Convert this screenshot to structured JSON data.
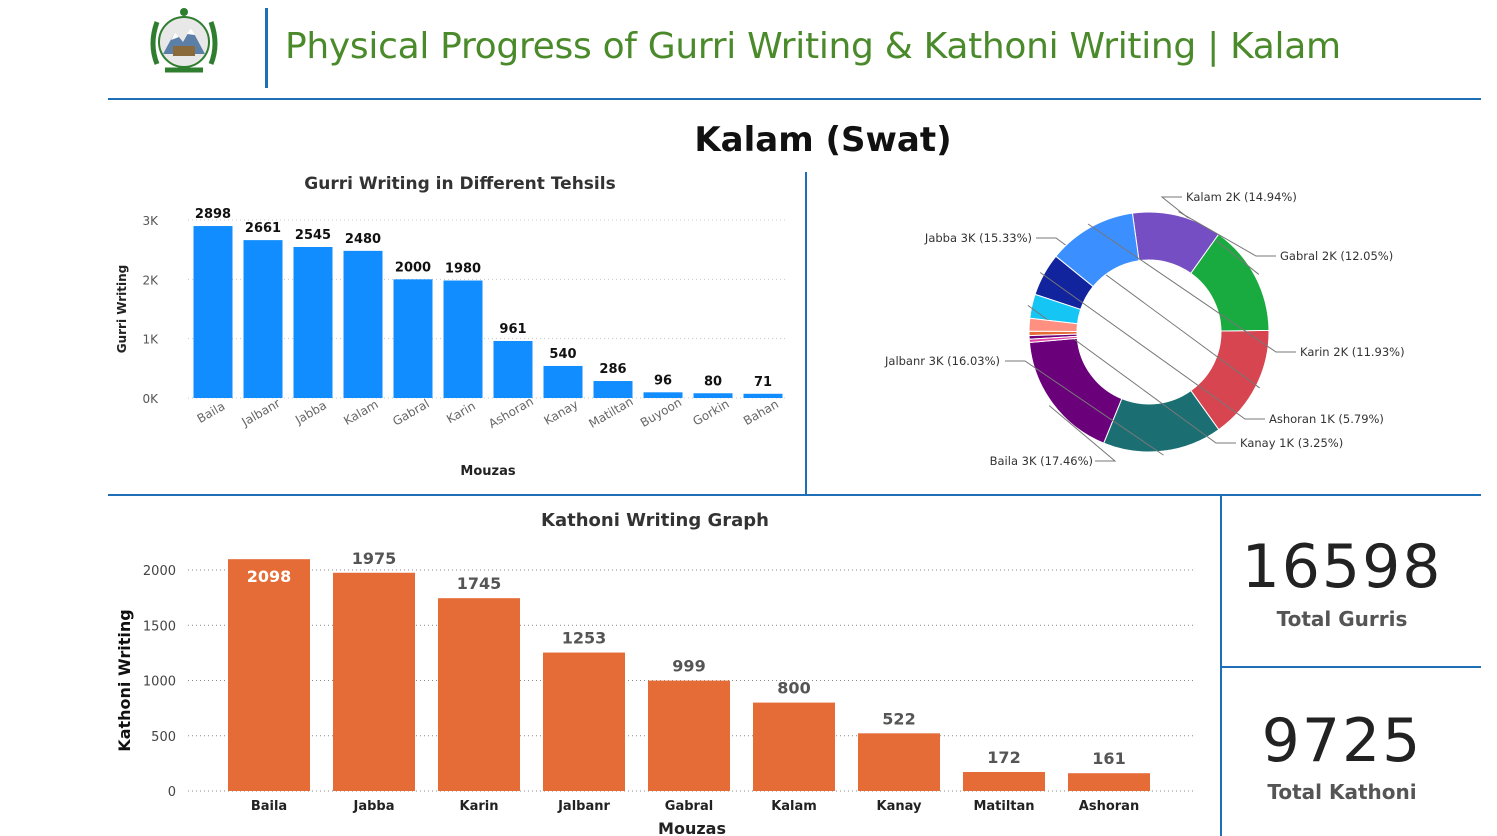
{
  "header": {
    "title": "Physical Progress of Gurri Writing & Kathoni Writing | Kalam"
  },
  "region_title": "Kalam (Swat)",
  "colors": {
    "header_green": "#4a8a2a",
    "divider_blue": "#1f6fb8",
    "gurri_bar": "#118dff",
    "kathoni_bar": "#e66c37"
  },
  "kpis": {
    "total_gurris_value": "16598",
    "total_gurris_label": "Total Gurris",
    "total_kathoni_value": "9725",
    "total_kathoni_label": "Total Kathoni"
  },
  "chart_data": [
    {
      "id": "gurri",
      "type": "bar",
      "title": "Gurri Writing in Different Tehsils",
      "xlabel": "Mouzas",
      "ylabel": "Gurri Writing",
      "categories": [
        "Baila",
        "Jalbanr",
        "Jabba",
        "Kalam",
        "Gabral",
        "Karin",
        "Ashoran",
        "Kanay",
        "Matiltan",
        "Buyoon",
        "Gorkin",
        "Bahan"
      ],
      "values": [
        2898,
        2661,
        2545,
        2480,
        2000,
        1980,
        961,
        540,
        286,
        96,
        80,
        71
      ],
      "yticks": [
        0,
        1000,
        2000,
        3000
      ],
      "ytick_labels": [
        "0K",
        "1K",
        "2K",
        "3K"
      ],
      "ylim": [
        0,
        3000
      ],
      "grid": true
    },
    {
      "id": "donut",
      "type": "pie",
      "donut": true,
      "slices": [
        {
          "label": "Baila 3K (17.46%)",
          "value": 17.46,
          "color": "#6b007b"
        },
        {
          "label": "Jalbanr 3K (16.03%)",
          "value": 16.03,
          "color": "#1b6f73"
        },
        {
          "label": "Jabba 3K (15.33%)",
          "value": 15.33,
          "color": "#d64550"
        },
        {
          "label": "Kalam 2K (14.94%)",
          "value": 14.94,
          "color": "#1aab40"
        },
        {
          "label": "Gabral 2K (12.05%)",
          "value": 12.05,
          "color": "#744ec2"
        },
        {
          "label": "Karin 2K (11.93%)",
          "value": 11.93,
          "color": "#3b8fff"
        },
        {
          "label": "Ashoran 1K (5.79%)",
          "value": 5.79,
          "color": "#12239e"
        },
        {
          "label": "Kanay 1K (3.25%)",
          "value": 3.25,
          "color": "#15c6f4"
        },
        {
          "label": "",
          "value": 1.72,
          "color": "#ff8f80"
        },
        {
          "label": "",
          "value": 0.58,
          "color": "#e66c37"
        },
        {
          "label": "",
          "value": 0.48,
          "color": "#6b007b"
        },
        {
          "label": "",
          "value": 0.43,
          "color": "#e044a7"
        }
      ]
    },
    {
      "id": "kathoni",
      "type": "bar",
      "title": "Kathoni Writing Graph",
      "xlabel": "Mouzas",
      "ylabel": "Kathoni Writing",
      "categories": [
        "Baila",
        "Jabba",
        "Karin",
        "Jalbanr",
        "Gabral",
        "Kalam",
        "Kanay",
        "Matiltan",
        "Ashoran"
      ],
      "values": [
        2098,
        1975,
        1745,
        1253,
        999,
        800,
        522,
        172,
        161
      ],
      "yticks": [
        0,
        500,
        1000,
        1500,
        2000
      ],
      "ylim": [
        0,
        2100
      ],
      "grid": true
    }
  ]
}
